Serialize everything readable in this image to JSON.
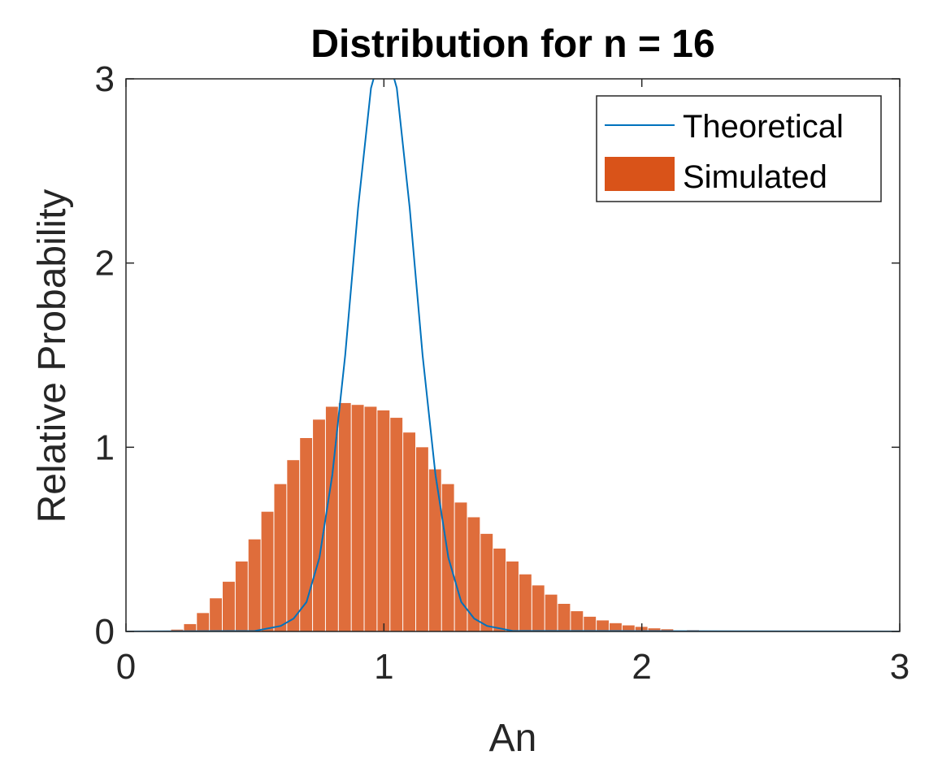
{
  "chart_data": {
    "type": "bar",
    "title": "Distribution for n = 16",
    "xlabel": "An",
    "ylabel": "Relative Probability",
    "xlim": [
      0,
      3
    ],
    "ylim": [
      0,
      3
    ],
    "xticks": [
      "0",
      "1",
      "2",
      "3"
    ],
    "yticks": [
      "0",
      "1",
      "2",
      "3"
    ],
    "grid": false,
    "legend_position": "top-right",
    "series": [
      {
        "name": "Theoretical",
        "kind": "line",
        "color": "#0072BD",
        "x": [
          0.0,
          0.5,
          0.6,
          0.65,
          0.7,
          0.75,
          0.8,
          0.85,
          0.9,
          0.95,
          1.0,
          1.05,
          1.1,
          1.15,
          1.2,
          1.25,
          1.3,
          1.35,
          1.4,
          1.5,
          3.0
        ],
        "y": [
          0.0,
          0.003,
          0.03,
          0.07,
          0.16,
          0.4,
          0.85,
          1.5,
          2.3,
          2.95,
          3.2,
          2.95,
          2.3,
          1.5,
          0.85,
          0.4,
          0.16,
          0.07,
          0.03,
          0.003,
          0.0
        ]
      },
      {
        "name": "Simulated",
        "kind": "histogram",
        "color": "#D95319",
        "x": [
          0.2,
          0.25,
          0.3,
          0.35,
          0.4,
          0.45,
          0.5,
          0.55,
          0.6,
          0.65,
          0.7,
          0.75,
          0.8,
          0.85,
          0.9,
          0.95,
          1.0,
          1.05,
          1.1,
          1.15,
          1.2,
          1.25,
          1.3,
          1.35,
          1.4,
          1.45,
          1.5,
          1.55,
          1.6,
          1.65,
          1.7,
          1.75,
          1.8,
          1.85,
          1.9,
          1.95,
          2.0,
          2.05,
          2.1,
          2.2,
          2.3,
          2.4,
          2.5
        ],
        "y": [
          0.01,
          0.04,
          0.1,
          0.18,
          0.27,
          0.38,
          0.5,
          0.65,
          0.8,
          0.93,
          1.05,
          1.15,
          1.22,
          1.24,
          1.23,
          1.22,
          1.2,
          1.16,
          1.08,
          1.0,
          0.88,
          0.8,
          0.7,
          0.62,
          0.53,
          0.45,
          0.38,
          0.31,
          0.25,
          0.2,
          0.15,
          0.11,
          0.08,
          0.06,
          0.045,
          0.033,
          0.025,
          0.017,
          0.012,
          0.007,
          0.004,
          0.002,
          0.001
        ]
      }
    ]
  }
}
